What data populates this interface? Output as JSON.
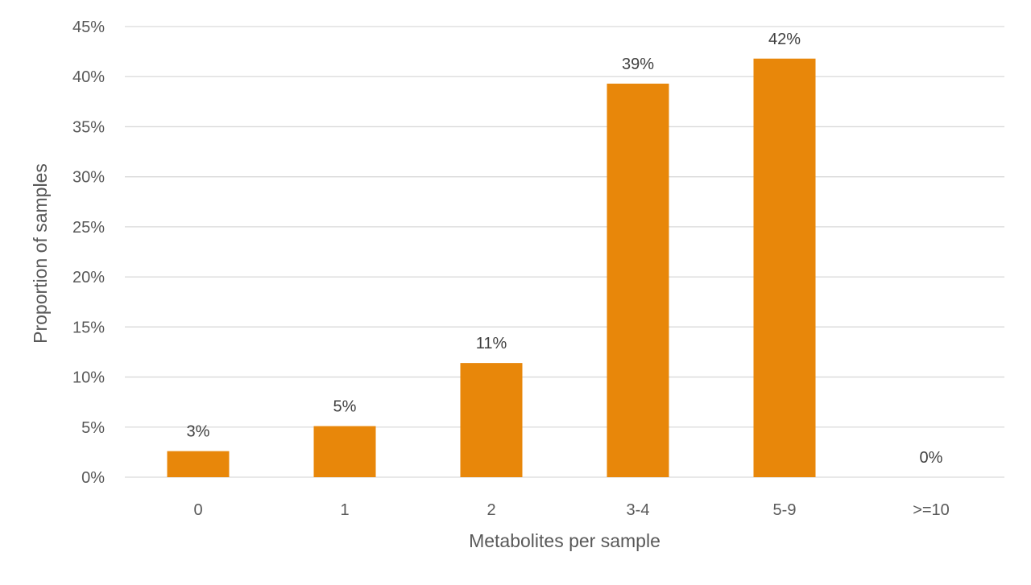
{
  "chart_data": {
    "type": "bar",
    "categories": [
      "0",
      "1",
      "2",
      "3-4",
      "5-9",
      ">=10"
    ],
    "values": [
      2.6,
      5.1,
      11.4,
      39.3,
      41.8,
      0
    ],
    "data_labels": [
      "3%",
      "5%",
      "11%",
      "39%",
      "42%",
      "0%"
    ],
    "y_tick_labels": [
      "0%",
      "5%",
      "10%",
      "15%",
      "20%",
      "25%",
      "30%",
      "35%",
      "40%",
      "45%"
    ],
    "xlabel": "Metabolites per sample",
    "ylabel": "Proportion of samples",
    "ylim": [
      0,
      45
    ],
    "y_tick_step": 5,
    "grid": true,
    "legend": "none",
    "bar_color": "#E8870A"
  }
}
